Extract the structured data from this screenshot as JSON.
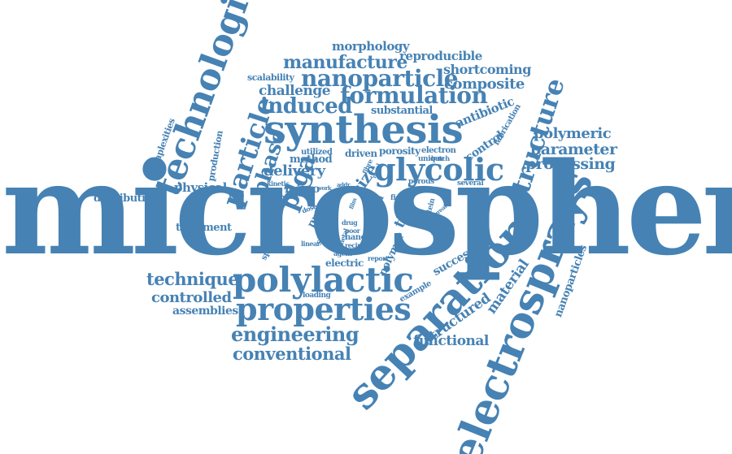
{
  "word_color": "#4682b4",
  "words": {
    "microsphere": "microsphere",
    "electrosprays": "electrosprays",
    "separation": "separation",
    "synthesis": "synthesis",
    "technologies": "technologies",
    "polylactic": "polylactic",
    "properties": "properties",
    "glycolic": "glycolic",
    "structure": "structure",
    "particle": "particle",
    "plga": "plga",
    "formulation": "formulation",
    "nanoparticle": "nanoparticle",
    "induced": "induced",
    "engineering": "engineering",
    "conventional": "conventional",
    "manufacture": "manufacture",
    "phase": "phase",
    "processing": "processing",
    "parameter": "parameter",
    "polymeric": "polymeric",
    "composite": "composite",
    "technique": "technique",
    "controlled": "controlled",
    "assemblies": "assemblies",
    "delivery": "delivery",
    "material": "material",
    "structured": "structured",
    "functional": "functional",
    "nanoparticles": "nanoparticles",
    "physical": "physical",
    "distribution": "distribution",
    "treatment": "treatment",
    "challenge": "challenge",
    "antibiotic": "antibiotic",
    "shortcoming": "shortcoming",
    "reproducible": "reproducible",
    "morphology": "morphology",
    "scalability": "scalability",
    "substantial": "substantial",
    "complexities": "complexities",
    "production": "production",
    "control": "control",
    "fabrication": "fabrication",
    "method": "method",
    "size": "size",
    "porosity": "porosity",
    "electron": "electron",
    "driven": "driven",
    "utilized": "utilized",
    "batch": "batch",
    "unique": "unique",
    "fibre": "fibre",
    "micro": "micro",
    "kinetic": "kinetic",
    "work": "work",
    "addr": "addr",
    "porous": "porous",
    "several": "several",
    "thesis": "thesis",
    "dose": "dose",
    "proc": "proc",
    "prop": "prop",
    "film": "film",
    "term": "term",
    "field": "field",
    "tip": "tip",
    "protein": "protein",
    "great": "great",
    "affect": "affect",
    "scale": "scale",
    "novel": "novel",
    "peptide": "peptide",
    "shape": "shape",
    "spherical": "spherical",
    "linear": "linear",
    "drug": "drug",
    "metal": "metal",
    "nano": "nano",
    "poor": "poor",
    "recipe": "recipe",
    "agent": "agent",
    "report": "report",
    "polymer": "polymer",
    "successful": "successful",
    "electric": "electric",
    "example": "example",
    "loading": "loading"
  }
}
